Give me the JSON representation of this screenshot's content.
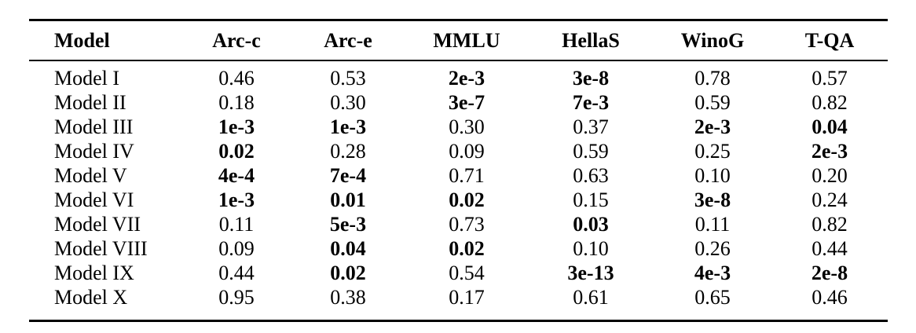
{
  "page": {
    "background": "#ffffff",
    "text_color": "#000000",
    "rule_color": "#000000"
  },
  "chart_data": {
    "type": "table",
    "columns": [
      "Model",
      "Arc-c",
      "Arc-e",
      "MMLU",
      "HellaS",
      "WinoG",
      "T-QA"
    ],
    "rows": [
      {
        "cells": [
          "Model I",
          "0.46",
          "0.53",
          "2e-3",
          "3e-8",
          "0.78",
          "0.57"
        ],
        "bold": [
          false,
          false,
          false,
          true,
          true,
          false,
          false
        ]
      },
      {
        "cells": [
          "Model II",
          "0.18",
          "0.30",
          "3e-7",
          "7e-3",
          "0.59",
          "0.82"
        ],
        "bold": [
          false,
          false,
          false,
          true,
          true,
          false,
          false
        ]
      },
      {
        "cells": [
          "Model III",
          "1e-3",
          "1e-3",
          "0.30",
          "0.37",
          "2e-3",
          "0.04"
        ],
        "bold": [
          false,
          true,
          true,
          false,
          false,
          true,
          true
        ]
      },
      {
        "cells": [
          "Model IV",
          "0.02",
          "0.28",
          "0.09",
          "0.59",
          "0.25",
          "2e-3"
        ],
        "bold": [
          false,
          true,
          false,
          false,
          false,
          false,
          true
        ]
      },
      {
        "cells": [
          "Model V",
          "4e-4",
          "7e-4",
          "0.71",
          "0.63",
          "0.10",
          "0.20"
        ],
        "bold": [
          false,
          true,
          true,
          false,
          false,
          false,
          false
        ]
      },
      {
        "cells": [
          "Model VI",
          "1e-3",
          "0.01",
          "0.02",
          "0.15",
          "3e-8",
          "0.24"
        ],
        "bold": [
          false,
          true,
          true,
          true,
          false,
          true,
          false
        ]
      },
      {
        "cells": [
          "Model VII",
          "0.11",
          "5e-3",
          "0.73",
          "0.03",
          "0.11",
          "0.82"
        ],
        "bold": [
          false,
          false,
          true,
          false,
          true,
          false,
          false
        ]
      },
      {
        "cells": [
          "Model VIII",
          "0.09",
          "0.04",
          "0.02",
          "0.10",
          "0.26",
          "0.44"
        ],
        "bold": [
          false,
          false,
          true,
          true,
          false,
          false,
          false
        ]
      },
      {
        "cells": [
          "Model IX",
          "0.44",
          "0.02",
          "0.54",
          "3e-13",
          "4e-3",
          "2e-8"
        ],
        "bold": [
          false,
          false,
          true,
          false,
          true,
          true,
          true
        ]
      },
      {
        "cells": [
          "Model X",
          "0.95",
          "0.38",
          "0.17",
          "0.61",
          "0.65",
          "0.46"
        ],
        "bold": [
          false,
          false,
          false,
          false,
          false,
          false,
          false
        ]
      }
    ]
  }
}
